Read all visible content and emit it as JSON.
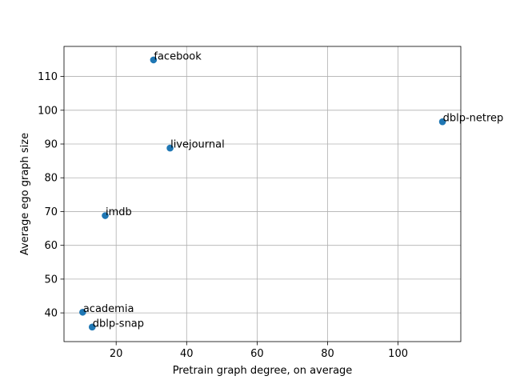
{
  "chart_data": {
    "type": "scatter",
    "xlabel": "Pretrain graph degree, on average",
    "ylabel": "Average ego graph size",
    "xlim": [
      5.2,
      117.8
    ],
    "ylim": [
      31.5,
      118.9
    ],
    "xticks": [
      20,
      40,
      60,
      80,
      100
    ],
    "yticks": [
      40,
      50,
      60,
      70,
      80,
      90,
      100,
      110
    ],
    "grid": true,
    "marker_color": "#1f77b4",
    "points": [
      {
        "label": "facebook",
        "x": 30.6,
        "y": 114.9
      },
      {
        "label": "dblp-netrep",
        "x": 112.6,
        "y": 96.6
      },
      {
        "label": "livejournal",
        "x": 35.3,
        "y": 88.8
      },
      {
        "label": "imdb",
        "x": 16.9,
        "y": 68.8
      },
      {
        "label": "academia",
        "x": 10.5,
        "y": 40.2
      },
      {
        "label": "dblp-snap",
        "x": 13.2,
        "y": 35.8
      }
    ]
  }
}
